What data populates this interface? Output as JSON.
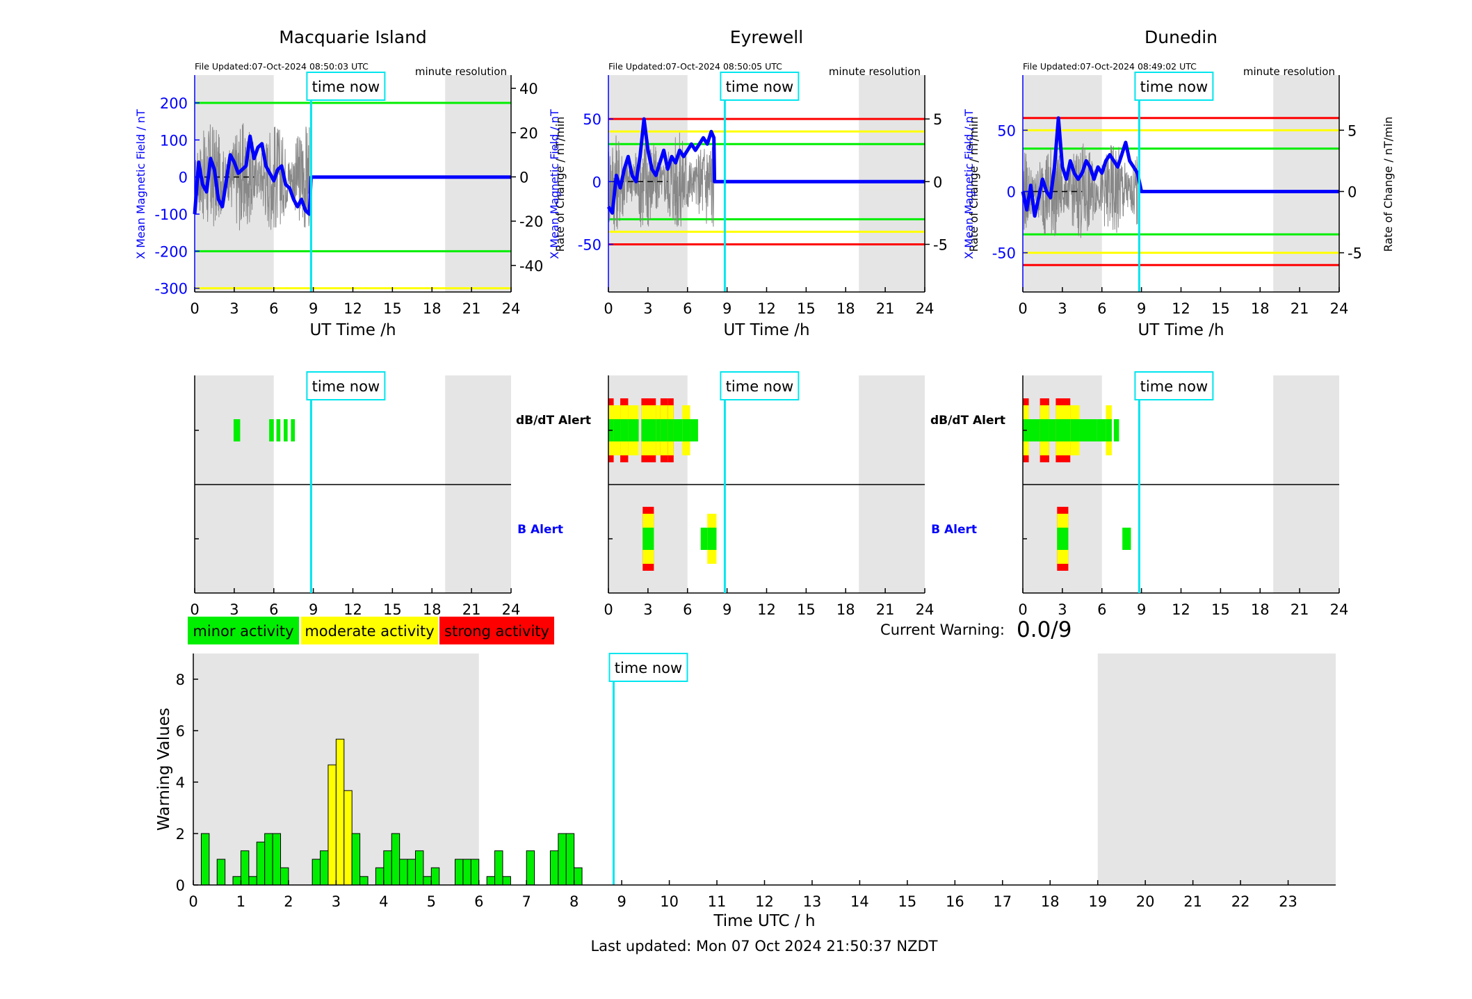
{
  "colors": {
    "minor": "#00ee00",
    "moderate": "#ffff00",
    "strong": "#ff0000",
    "field": "#0000ff",
    "now": "#00e5ee",
    "night": "#e5e5e5",
    "roc": "#888888"
  },
  "stations": [
    {
      "name": "Macquarie Island",
      "file_updated": "File Updated:07-Oct-2024 08:50:03 UTC",
      "resolution": "minute resolution",
      "ylabel_left": "X Mean Magnetic Field / nT",
      "ylabel_right": "Rate of Change / nT/min",
      "xlabel": "UT Time /h",
      "now_label": "time now",
      "left_ticks": [
        -300,
        -200,
        -100,
        0,
        100,
        200
      ],
      "right_ticks": [
        -40,
        -20,
        0,
        20,
        40
      ],
      "x_ticks": [
        0,
        3,
        6,
        9,
        12,
        15,
        18,
        21,
        24
      ],
      "chart_data": {
        "type": "line",
        "xlim": [
          0,
          24
        ],
        "ylim_left": [
          -310,
          275
        ],
        "ylim_right": [
          -52,
          46
        ],
        "night_bands": [
          [
            0,
            6
          ],
          [
            19,
            24
          ]
        ],
        "now_hour": 8.83,
        "threshold_lines": [
          {
            "value": 200,
            "color": "minor"
          },
          {
            "value": -200,
            "color": "minor"
          },
          {
            "value": -300,
            "color": "moderate"
          }
        ],
        "field_x": [
          0,
          0.3,
          0.6,
          0.9,
          1.2,
          1.5,
          1.8,
          2.1,
          2.4,
          2.7,
          3.0,
          3.3,
          3.6,
          3.9,
          4.2,
          4.5,
          4.8,
          5.1,
          5.4,
          5.7,
          6.0,
          6.3,
          6.6,
          6.9,
          7.2,
          7.5,
          7.8,
          8.1,
          8.4,
          8.7,
          8.83,
          24
        ],
        "field_y": [
          -100,
          40,
          -20,
          -40,
          50,
          20,
          -60,
          -80,
          -10,
          60,
          40,
          10,
          20,
          30,
          110,
          50,
          80,
          90,
          30,
          10,
          -10,
          20,
          30,
          -20,
          -30,
          -60,
          -80,
          -60,
          -90,
          -100,
          0,
          0
        ],
        "roc_amplitude": 25
      }
    },
    {
      "name": "Eyrewell",
      "file_updated": "File Updated:07-Oct-2024 08:50:05 UTC",
      "resolution": "minute resolution",
      "ylabel_left": "X Mean Magnetic Field / nT",
      "ylabel_right": "Rate of Change / nT/min",
      "xlabel": "UT Time /h",
      "now_label": "time now",
      "left_ticks": [
        -50,
        0,
        50
      ],
      "right_ticks": [
        -5,
        0,
        5
      ],
      "x_ticks": [
        0,
        3,
        6,
        9,
        12,
        15,
        18,
        21,
        24
      ],
      "chart_data": {
        "type": "line",
        "xlim": [
          0,
          24
        ],
        "ylim_left": [
          -88,
          85
        ],
        "ylim_right": [
          -8.8,
          8.5
        ],
        "night_bands": [
          [
            0,
            6
          ],
          [
            19,
            24
          ]
        ],
        "now_hour": 8.83,
        "threshold_lines": [
          {
            "value": 50,
            "color": "strong"
          },
          {
            "value": 40,
            "color": "moderate"
          },
          {
            "value": 30,
            "color": "minor"
          },
          {
            "value": -30,
            "color": "minor"
          },
          {
            "value": -40,
            "color": "moderate"
          },
          {
            "value": -50,
            "color": "strong"
          }
        ],
        "field_x": [
          0,
          0.3,
          0.6,
          0.9,
          1.2,
          1.5,
          1.8,
          2.1,
          2.4,
          2.7,
          3.0,
          3.3,
          3.6,
          3.9,
          4.2,
          4.5,
          4.8,
          5.1,
          5.4,
          5.7,
          6.0,
          6.3,
          6.6,
          6.9,
          7.2,
          7.5,
          7.8,
          8.0,
          8.05,
          24
        ],
        "field_y": [
          -20,
          -25,
          5,
          -5,
          10,
          20,
          5,
          0,
          20,
          50,
          25,
          10,
          5,
          15,
          25,
          10,
          20,
          15,
          25,
          20,
          25,
          30,
          25,
          30,
          35,
          30,
          40,
          35,
          0,
          0
        ],
        "roc_amplitude": 4
      }
    },
    {
      "name": "Dunedin",
      "file_updated": "File Updated:07-Oct-2024 08:49:02 UTC",
      "resolution": "minute resolution",
      "ylabel_left": "X Mean Magnetic Field / nT",
      "ylabel_right": "Rate of Change / nT/min",
      "xlabel": "UT Time /h",
      "now_label": "time now",
      "left_ticks": [
        -50,
        0,
        50
      ],
      "right_ticks": [
        -5,
        0,
        5
      ],
      "x_ticks": [
        0,
        3,
        6,
        9,
        12,
        15,
        18,
        21,
        24
      ],
      "chart_data": {
        "type": "line",
        "xlim": [
          0,
          24
        ],
        "ylim_left": [
          -82,
          95
        ],
        "ylim_right": [
          -8.2,
          9.5
        ],
        "night_bands": [
          [
            0,
            6
          ],
          [
            19,
            24
          ]
        ],
        "now_hour": 8.83,
        "threshold_lines": [
          {
            "value": 60,
            "color": "strong"
          },
          {
            "value": 50,
            "color": "moderate"
          },
          {
            "value": 35,
            "color": "minor"
          },
          {
            "value": -35,
            "color": "minor"
          },
          {
            "value": -50,
            "color": "moderate"
          },
          {
            "value": -60,
            "color": "strong"
          }
        ],
        "field_x": [
          0,
          0.3,
          0.6,
          0.9,
          1.2,
          1.5,
          1.8,
          2.1,
          2.4,
          2.7,
          3.0,
          3.3,
          3.6,
          3.9,
          4.2,
          4.5,
          4.8,
          5.1,
          5.4,
          5.7,
          6.0,
          6.3,
          6.6,
          6.9,
          7.2,
          7.5,
          7.8,
          8.1,
          8.4,
          8.7,
          9.0,
          24
        ],
        "field_y": [
          0,
          -15,
          5,
          -20,
          -5,
          10,
          0,
          -5,
          20,
          60,
          20,
          10,
          25,
          15,
          10,
          15,
          25,
          20,
          10,
          20,
          15,
          25,
          30,
          25,
          20,
          30,
          40,
          25,
          20,
          15,
          0,
          0
        ],
        "roc_amplitude": 4
      }
    }
  ],
  "alerts": {
    "dbdt_label": "dB/dT Alert",
    "b_label": "B Alert",
    "now_label": "time now",
    "x_ticks": [
      0,
      3,
      6,
      9,
      12,
      15,
      18,
      21,
      24
    ],
    "chart_data": [
      {
        "type": "heatmap",
        "station": "Macquarie Island",
        "dbdt": [
          {
            "x0": 2.95,
            "x1": 3.45,
            "level": 1
          },
          {
            "x0": 5.65,
            "x1": 6.0,
            "level": 1
          },
          {
            "x0": 6.2,
            "x1": 6.5,
            "level": 1
          },
          {
            "x0": 6.75,
            "x1": 7.05,
            "level": 1
          },
          {
            "x0": 7.3,
            "x1": 7.6,
            "level": 1
          }
        ],
        "b": []
      },
      {
        "type": "heatmap",
        "station": "Eyrewell",
        "dbdt": [
          {
            "x0": 0.0,
            "x1": 0.4,
            "level": 3
          },
          {
            "x0": 0.4,
            "x1": 0.9,
            "level": 2
          },
          {
            "x0": 0.9,
            "x1": 1.5,
            "level": 3
          },
          {
            "x0": 1.5,
            "x1": 2.3,
            "level": 2
          },
          {
            "x0": 2.5,
            "x1": 3.6,
            "level": 3
          },
          {
            "x0": 3.6,
            "x1": 3.95,
            "level": 2
          },
          {
            "x0": 3.95,
            "x1": 4.5,
            "level": 3
          },
          {
            "x0": 4.5,
            "x1": 4.95,
            "level": 3
          },
          {
            "x0": 4.95,
            "x1": 5.6,
            "level": 1
          },
          {
            "x0": 5.6,
            "x1": 6.2,
            "level": 2
          },
          {
            "x0": 6.2,
            "x1": 6.8,
            "level": 1
          }
        ],
        "b": [
          {
            "x0": 2.6,
            "x1": 3.45,
            "level": 3
          },
          {
            "x0": 7.0,
            "x1": 7.5,
            "level": 1
          },
          {
            "x0": 7.5,
            "x1": 8.2,
            "level": 2
          }
        ]
      },
      {
        "type": "heatmap",
        "station": "Dunedin",
        "dbdt": [
          {
            "x0": 0.0,
            "x1": 0.45,
            "level": 3
          },
          {
            "x0": 0.45,
            "x1": 1.3,
            "level": 1
          },
          {
            "x0": 1.3,
            "x1": 2.0,
            "level": 3
          },
          {
            "x0": 2.0,
            "x1": 2.5,
            "level": 1
          },
          {
            "x0": 2.5,
            "x1": 3.6,
            "level": 3
          },
          {
            "x0": 3.6,
            "x1": 4.3,
            "level": 2
          },
          {
            "x0": 4.3,
            "x1": 5.6,
            "level": 1
          },
          {
            "x0": 5.6,
            "x1": 6.3,
            "level": 1
          },
          {
            "x0": 6.3,
            "x1": 6.75,
            "level": 2
          },
          {
            "x0": 6.9,
            "x1": 7.3,
            "level": 1
          }
        ],
        "b": [
          {
            "x0": 2.6,
            "x1": 3.45,
            "level": 3
          },
          {
            "x0": 7.55,
            "x1": 8.2,
            "level": 1
          }
        ]
      }
    ]
  },
  "legend": [
    {
      "label": "minor activity",
      "color": "minor"
    },
    {
      "label": "moderate activity",
      "color": "moderate"
    },
    {
      "label": "strong activity",
      "color": "strong"
    }
  ],
  "current_warning": {
    "label": "Current Warning:",
    "value": "0.0/9"
  },
  "warning_chart": {
    "now_label": "time now",
    "xlabel": "Time UTC / h",
    "ylabel": "Warning Values",
    "x_ticks": [
      0,
      1,
      2,
      3,
      4,
      5,
      6,
      7,
      8,
      9,
      10,
      11,
      12,
      13,
      14,
      15,
      16,
      17,
      18,
      19,
      20,
      21,
      22,
      23
    ],
    "y_ticks": [
      0,
      2,
      4,
      6,
      8
    ],
    "chart_data": {
      "type": "bar",
      "xlim": [
        0,
        24
      ],
      "ylim": [
        0,
        9
      ],
      "bar_width_h": 0.1667,
      "night_bands": [
        [
          0,
          6
        ],
        [
          19,
          24
        ]
      ],
      "now_hour": 8.83,
      "bars": [
        {
          "x": 0.0,
          "value": 0
        },
        {
          "x": 0.167,
          "value": 2
        },
        {
          "x": 0.5,
          "value": 1
        },
        {
          "x": 0.833,
          "value": 0.33
        },
        {
          "x": 1.0,
          "value": 1.33
        },
        {
          "x": 1.167,
          "value": 0.33
        },
        {
          "x": 1.333,
          "value": 1.67
        },
        {
          "x": 1.5,
          "value": 2
        },
        {
          "x": 1.667,
          "value": 2
        },
        {
          "x": 1.833,
          "value": 0.67
        },
        {
          "x": 2.5,
          "value": 1
        },
        {
          "x": 2.667,
          "value": 1.33
        },
        {
          "x": 2.833,
          "value": 4.67
        },
        {
          "x": 3.0,
          "value": 5.67
        },
        {
          "x": 3.167,
          "value": 3.67
        },
        {
          "x": 3.333,
          "value": 2
        },
        {
          "x": 3.5,
          "value": 0.33
        },
        {
          "x": 3.833,
          "value": 0.67
        },
        {
          "x": 4.0,
          "value": 1.33
        },
        {
          "x": 4.167,
          "value": 2
        },
        {
          "x": 4.333,
          "value": 1
        },
        {
          "x": 4.5,
          "value": 1
        },
        {
          "x": 4.667,
          "value": 1.33
        },
        {
          "x": 4.833,
          "value": 0.33
        },
        {
          "x": 5.0,
          "value": 0.67
        },
        {
          "x": 5.5,
          "value": 1
        },
        {
          "x": 5.667,
          "value": 1
        },
        {
          "x": 5.833,
          "value": 1
        },
        {
          "x": 6.167,
          "value": 0.33
        },
        {
          "x": 6.333,
          "value": 1.33
        },
        {
          "x": 6.5,
          "value": 0.33
        },
        {
          "x": 7.0,
          "value": 1.33
        },
        {
          "x": 7.5,
          "value": 1.33
        },
        {
          "x": 7.667,
          "value": 2
        },
        {
          "x": 7.833,
          "value": 2
        },
        {
          "x": 8.0,
          "value": 0.67
        }
      ]
    }
  },
  "footer": {
    "last_updated": "Last updated: Mon 07 Oct 2024 21:50:37 NZDT"
  }
}
